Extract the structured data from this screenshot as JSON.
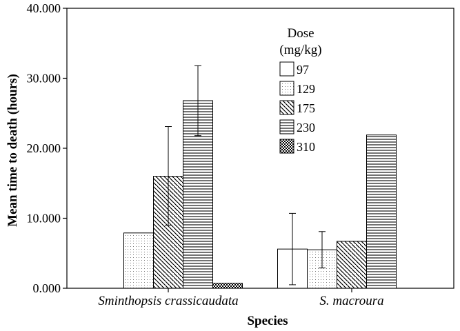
{
  "chart_data": {
    "type": "bar",
    "title": "",
    "xlabel": "Species",
    "ylabel": "Mean time to death (hours)",
    "ylim": [
      0,
      40
    ],
    "y_ticks": [
      "0.000",
      "10.000",
      "20.000",
      "30.000",
      "40.000"
    ],
    "categories": [
      "Sminthopsis crassicaudata",
      "S. macroura"
    ],
    "legend": {
      "title_lines": [
        "Dose",
        "(mg/kg)"
      ],
      "placement": "top-center"
    },
    "grid": false,
    "series": [
      {
        "name": "97",
        "pattern": "white",
        "values": [
          null,
          5.6
        ],
        "error_low": [
          null,
          0.5
        ],
        "error_high": [
          null,
          10.7
        ]
      },
      {
        "name": "129",
        "pattern": "dots",
        "values": [
          7.9,
          5.5
        ],
        "error_low": [
          null,
          2.9
        ],
        "error_high": [
          null,
          8.1
        ]
      },
      {
        "name": "175",
        "pattern": "diagonal",
        "values": [
          16.0,
          6.7
        ],
        "error_low": [
          9.0,
          null
        ],
        "error_high": [
          23.1,
          null
        ]
      },
      {
        "name": "230",
        "pattern": "horizontal",
        "values": [
          26.8,
          21.9
        ],
        "error_low": [
          21.8,
          null
        ],
        "error_high": [
          31.8,
          null
        ]
      },
      {
        "name": "310",
        "pattern": "checker",
        "values": [
          0.7,
          null
        ],
        "error_low": [
          null,
          null
        ],
        "error_high": [
          null,
          null
        ]
      }
    ]
  }
}
